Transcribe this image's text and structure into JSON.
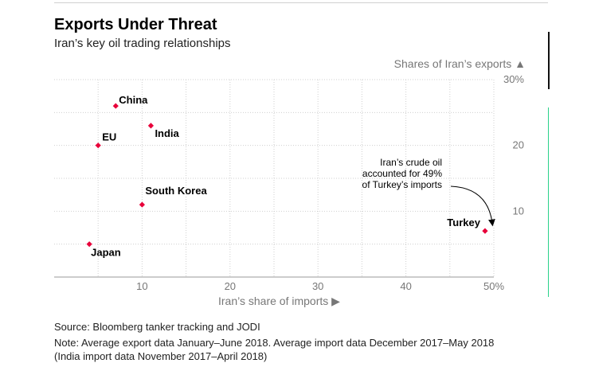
{
  "header": {
    "title": "Exports Under Threat",
    "subtitle": "Iran’s key oil trading relationships"
  },
  "chart_data": {
    "type": "scatter",
    "xlabel": "Iran’s share of imports ▶",
    "ylabel": "Shares of Iran’s exports ▲",
    "xlim": [
      0,
      50
    ],
    "ylim": [
      0,
      30
    ],
    "x_ticks": [
      "10",
      "20",
      "30",
      "40",
      "50%"
    ],
    "y_ticks": [
      "10",
      "20",
      "30%"
    ],
    "grid": "horizontal dotted",
    "marker_color": "#e8003a",
    "points": [
      {
        "label": "China",
        "x": 7,
        "y": 26
      },
      {
        "label": "India",
        "x": 11,
        "y": 23
      },
      {
        "label": "EU",
        "x": 5,
        "y": 20
      },
      {
        "label": "South Korea",
        "x": 10,
        "y": 11
      },
      {
        "label": "Japan",
        "x": 4,
        "y": 5
      },
      {
        "label": "Turkey",
        "x": 49,
        "y": 7
      }
    ],
    "annotation": {
      "lines": [
        "Iran’s crude oil",
        "accounted for 49%",
        "of Turkey’s imports"
      ]
    }
  },
  "footer": {
    "source": "Source: Bloomberg tanker tracking and JODI",
    "note_line1": "Note: Average export data January–June 2018. Average import data December 2017–May 2018",
    "note_line2": "(India import data November 2017–April 2018)"
  }
}
